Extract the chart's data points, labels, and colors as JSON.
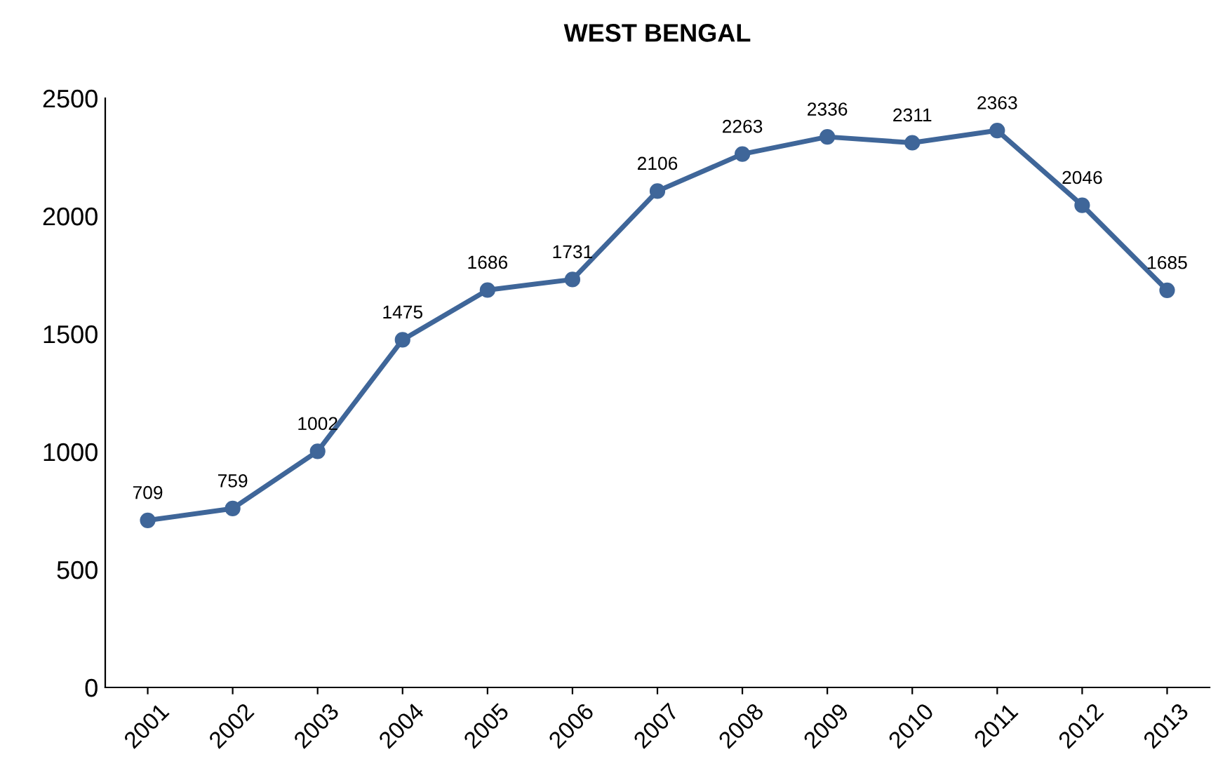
{
  "chart_data": {
    "type": "line",
    "title": "WEST BENGAL",
    "categories": [
      "2001",
      "2002",
      "2003",
      "2004",
      "2005",
      "2006",
      "2007",
      "2008",
      "2009",
      "2010",
      "2011",
      "2012",
      "2013"
    ],
    "series": [
      {
        "color": "#3f6699",
        "values": [
          709,
          759,
          1002,
          1475,
          1686,
          1731,
          2106,
          2263,
          2336,
          2311,
          2363,
          2046,
          1685
        ]
      }
    ],
    "ylim": [
      0,
      2500
    ],
    "yticks": [
      0,
      500,
      1000,
      1500,
      2000,
      2500
    ],
    "marker": "circle",
    "line_style": "solid",
    "data_labels": true,
    "grid": false,
    "legend": false
  }
}
